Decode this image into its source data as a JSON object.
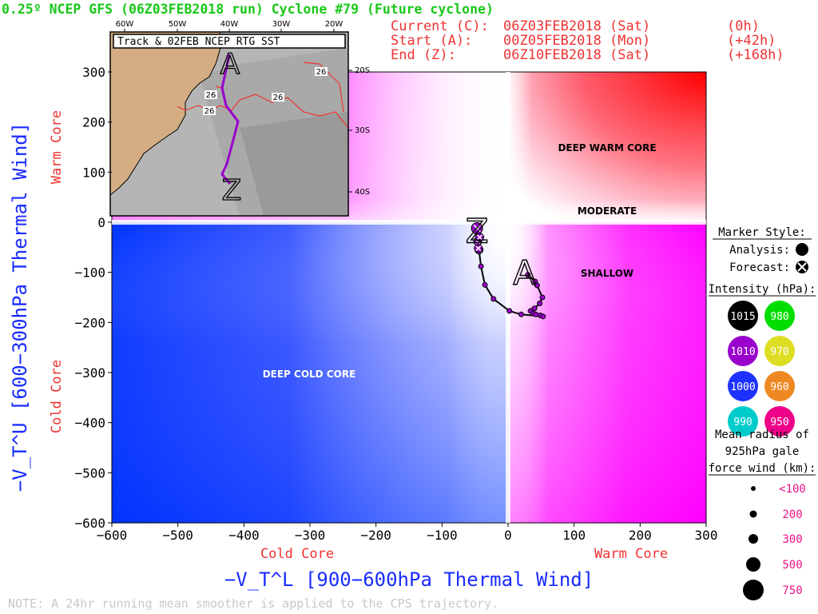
{
  "header": {
    "title": "0.25º NCEP GFS (06Z03FEB2018 run) Cyclone #79 (Future cyclone)",
    "current_label": "Current (C):",
    "current_value": "06Z03FEB2018 (Sat)",
    "current_offset": "(0h)",
    "start_label": "Start (A):",
    "start_value": "00Z05FEB2018 (Mon)",
    "start_offset": "(+42h)",
    "end_label": "End (Z):",
    "end_value": "06Z10FEB2018 (Sat)",
    "end_offset": "(+168h)"
  },
  "inset": {
    "title": "Track & 02FEB NCEP RTG SST",
    "lon_labels": [
      "60W",
      "50W",
      "40W",
      "30W",
      "20W"
    ],
    "lat_labels": [
      "20S",
      "30S",
      "40S"
    ],
    "sst_labels": [
      "26",
      "26",
      "26",
      "26"
    ]
  },
  "legend": {
    "marker_title": "Marker Style:",
    "analysis": "Analysis:",
    "forecast": "Forecast:",
    "intensity_title": "Intensity (hPa):",
    "intensity_values": [
      "1015",
      "980",
      "1010",
      "970",
      "1000",
      "960",
      "990",
      "950"
    ],
    "intensity_colors": [
      "#000000",
      "#00dd00",
      "#9a00cc",
      "#dddd22",
      "#1e32ff",
      "#ee8822",
      "#00cccc",
      "#ee0088"
    ],
    "radius_title_1": "Mean radius of",
    "radius_title_2": "925hPa gale",
    "radius_title_3": "force wind (km):",
    "radius_values": [
      "<100",
      "200",
      "300",
      "500",
      "750"
    ]
  },
  "note": "NOTE: A 24hr running mean smoother is applied to the CPS trajectory.",
  "chart_data": {
    "type": "scatter",
    "xlabel": "−V_T^L [900−600hPa Thermal Wind]",
    "ylabel": "−V_T^U [600−300hPa Thermal Wind]",
    "xlim": [
      -600,
      300
    ],
    "ylim": [
      -600,
      300
    ],
    "x_ticks": [
      -600,
      -500,
      -400,
      -300,
      -200,
      -100,
      0,
      100,
      200,
      300
    ],
    "y_ticks": [
      300,
      200,
      100,
      0,
      -100,
      -200,
      -300,
      -400,
      -500,
      -600
    ],
    "x_tick_labels": [
      "−600",
      "−500",
      "−400",
      "−300",
      "−200",
      "−100",
      "0",
      "100",
      "200",
      "300"
    ],
    "y_tick_labels": [
      "300",
      "200",
      "100",
      "0",
      "−100",
      "−200",
      "−300",
      "−400",
      "−500",
      "−600"
    ],
    "x_axis_cold": "Cold Core",
    "x_axis_warm": "Warm Core",
    "y_axis_warm": "Warm Core",
    "y_axis_cold": "Cold Core",
    "regions": {
      "deep_warm": "DEEP WARM CORE",
      "moderate": "MODERATE",
      "shallow": "SHALLOW",
      "deep_cold": "DEEP COLD CORE"
    },
    "start_marker": "A",
    "end_marker": "Z",
    "series": [
      {
        "x": [
          30,
          41,
          44,
          52,
          48,
          40,
          34,
          38,
          42,
          49,
          53,
          20,
          2,
          -22,
          -35,
          -41,
          -44,
          -45,
          -46,
          -43,
          -47
        ],
        "y": [
          -105,
          -118,
          -126,
          -150,
          -162,
          -172,
          -177,
          -182,
          -184,
          -186,
          -188,
          -184,
          -177,
          -153,
          -125,
          -88,
          -55,
          -52,
          -38,
          -30,
          -12
        ],
        "intensity": [
          1010,
          1010,
          1010,
          1010,
          1010,
          1010,
          1010,
          1010,
          1010,
          1010,
          1010,
          1010,
          1010,
          1010,
          1010,
          1010,
          1010,
          1010,
          1010,
          1010,
          1010
        ],
        "size": [
          "<100",
          "<100",
          "<100",
          "<100",
          "<100",
          "<100",
          "<100",
          "<100",
          "<100",
          "<100",
          "<100",
          "<100",
          "<100",
          "<100",
          "<100",
          "<100",
          "200",
          "200",
          "200",
          "200",
          "300"
        ]
      }
    ]
  }
}
